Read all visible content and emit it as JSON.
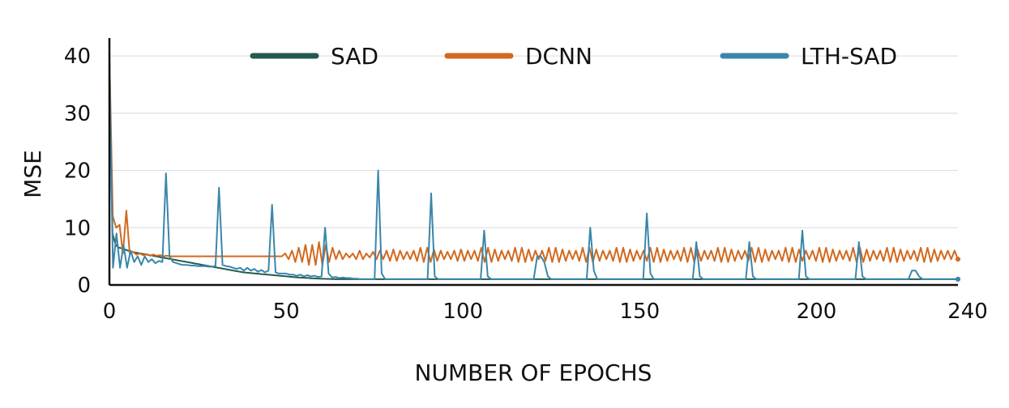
{
  "chart_data": {
    "type": "line",
    "title": "",
    "xlabel": "NUMBER OF EPOCHS",
    "ylabel": "MSE",
    "xlim": [
      0,
      240
    ],
    "ylim": [
      0,
      42
    ],
    "xticks": [
      0,
      50,
      100,
      150,
      200,
      240
    ],
    "yticks": [
      0,
      10,
      20,
      30,
      40
    ],
    "grid": "horizontal",
    "legend": "top",
    "series": [
      {
        "name": "SAD",
        "color": "#245a4f",
        "values": [
          40,
          9,
          7,
          6.5,
          6.4,
          6.2,
          6,
          5.8,
          5.7,
          5.6,
          5.5,
          5.4,
          5.3,
          5.2,
          5.1,
          5,
          4.9,
          4.8,
          4.7,
          4.6,
          4.5,
          4.4,
          4.3,
          4.2,
          4.1,
          4,
          3.9,
          3.8,
          3.7,
          3.6,
          3.5,
          3.4,
          3.3,
          3.2,
          3.1,
          3,
          2.9,
          2.8,
          2.7,
          2.6,
          2.5,
          2.4,
          2.3,
          2.2,
          2.15,
          2.1,
          2.05,
          2,
          1.95,
          1.9,
          1.85,
          1.8,
          1.75,
          1.7,
          1.65,
          1.6,
          1.55,
          1.5,
          1.45,
          1.4,
          1.35,
          1.3,
          1.27,
          1.24,
          1.21,
          1.18,
          1.15,
          1.12,
          1.1,
          1.08,
          1.06,
          1.04,
          1.02,
          1,
          1,
          1,
          1,
          1,
          1,
          1,
          1,
          1,
          1,
          1,
          1,
          1,
          1,
          1,
          1,
          1,
          1,
          1,
          1,
          1,
          1,
          1,
          1,
          1,
          1,
          1,
          1,
          1,
          1,
          1,
          1,
          1,
          1,
          1,
          1,
          1,
          1,
          1,
          1,
          1,
          1,
          1,
          1,
          1,
          1,
          1,
          1,
          1,
          1,
          1,
          1,
          1,
          1,
          1,
          1,
          1,
          1,
          1,
          1,
          1,
          1,
          1,
          1,
          1,
          1,
          1,
          1,
          1,
          1,
          1,
          1,
          1,
          1,
          1,
          1,
          1,
          1,
          1,
          1,
          1,
          1,
          1,
          1,
          1,
          1,
          1,
          1,
          1,
          1,
          1,
          1,
          1,
          1,
          1,
          1,
          1,
          1,
          1,
          1,
          1,
          1,
          1,
          1,
          1,
          1,
          1,
          1,
          1,
          1,
          1,
          1,
          1,
          1,
          1,
          1,
          1,
          1,
          1,
          1,
          1,
          1,
          1,
          1,
          1,
          1,
          1,
          1,
          1,
          1,
          1,
          1,
          1,
          1,
          1,
          1,
          1,
          1,
          1,
          1,
          1,
          1,
          1,
          1,
          1,
          1,
          1,
          1,
          1,
          1,
          1,
          1,
          1,
          1,
          1,
          1,
          1,
          1,
          1,
          1,
          1,
          1,
          1,
          1,
          1,
          1,
          1,
          1,
          1,
          1,
          1,
          1,
          1,
          1,
          1,
          1,
          1,
          1,
          1,
          1,
          1,
          1,
          1,
          1,
          1,
          1,
          1,
          1,
          1,
          1,
          1,
          1,
          1,
          1,
          1,
          1,
          1,
          1,
          1,
          1,
          1
        ]
      },
      {
        "name": "DCNN",
        "color": "#d2691e",
        "values": [
          40,
          12,
          10,
          10.5,
          5.5,
          13,
          5.5,
          5.8,
          5.3,
          5.5,
          5.2,
          5.4,
          5.1,
          5.3,
          5.1,
          5.2,
          5,
          5.1,
          5,
          5,
          5,
          5,
          5,
          5,
          5,
          5,
          5,
          5,
          5,
          5,
          5,
          5,
          5,
          5,
          5,
          5,
          5,
          5,
          5,
          5,
          5,
          5,
          5,
          5,
          5,
          5,
          5,
          5,
          5,
          5,
          5,
          5,
          5.5,
          4.5,
          6,
          4,
          6.5,
          4,
          7,
          3.5,
          7,
          3.5,
          7.5,
          3.5,
          7,
          4,
          6.5,
          4.5,
          6,
          4.5,
          5.5,
          4.8,
          5.5,
          4.5,
          6,
          4.5,
          5.5,
          4.8,
          5.8,
          4.5,
          6,
          4.5,
          6,
          4.2,
          6.2,
          4.2,
          6,
          4.5,
          5.8,
          4.5,
          6,
          4.2,
          6.5,
          4,
          6.5,
          4,
          6.2,
          4.2,
          6,
          4.5,
          5.8,
          4.5,
          6,
          4.2,
          6.2,
          4.2,
          6,
          4.5,
          6,
          4.2,
          6.5,
          4,
          6.5,
          4,
          6.2,
          4.2,
          6,
          4.5,
          6,
          4.2,
          6.5,
          4,
          6.5,
          4,
          6.2,
          4.2,
          6,
          4.5,
          6,
          4.2,
          6.5,
          4,
          6.5,
          4,
          6.2,
          4.2,
          6,
          4.5,
          6,
          4.2,
          6.5,
          4,
          6.5,
          4,
          6.2,
          4.2,
          6,
          4.5,
          6,
          4.2,
          6.5,
          4,
          6.5,
          4,
          6.2,
          4.2,
          6,
          4.5,
          6,
          4.2,
          6.5,
          4,
          6.5,
          4,
          6.2,
          4.2,
          6,
          4.5,
          6,
          4.2,
          6.5,
          4,
          6.5,
          4,
          6.2,
          4.2,
          6,
          4.5,
          6,
          4.2,
          6.5,
          4,
          6.5,
          4,
          6.2,
          4.2,
          6,
          4.5,
          6,
          4.2,
          6.5,
          4,
          6.5,
          4,
          6.2,
          4.2,
          6,
          4.5,
          6,
          4.2,
          6.5,
          4,
          6.5,
          4,
          6.2,
          4.2,
          6,
          4.5,
          6,
          4.2,
          6.5,
          4,
          6.5,
          4,
          6.2,
          4.2,
          6,
          4.5,
          6,
          4.2,
          6.5,
          4,
          6.5,
          4,
          6.2,
          4.2,
          6,
          4.5,
          6,
          4.2,
          6.5,
          4,
          6.5,
          4,
          6.2,
          4.2,
          6,
          4.5,
          6,
          4.2,
          6.5,
          4,
          6.5,
          4,
          6.2,
          4.2,
          6,
          4.5,
          6,
          4.5,
          6,
          4.5
        ]
      },
      {
        "name": "LTH-SAD",
        "color": "#3a86ab",
        "values": [
          38,
          3,
          9,
          3,
          7,
          3,
          6,
          4,
          5,
          3.5,
          5,
          4,
          4.5,
          3.8,
          4.2,
          4,
          19.5,
          5,
          4,
          3.8,
          3.6,
          3.5,
          3.5,
          3.4,
          3.4,
          3.3,
          3.3,
          3.3,
          3.2,
          3.2,
          3.3,
          17,
          3.5,
          3.3,
          3.2,
          3,
          2.8,
          3,
          2.5,
          3,
          2.5,
          2.8,
          2.3,
          2.6,
          2.2,
          2.5,
          14,
          2.2,
          2,
          2,
          2,
          1.8,
          1.8,
          1.6,
          1.8,
          1.5,
          1.7,
          1.5,
          1.6,
          1.4,
          1.5,
          10,
          2,
          1.3,
          1.4,
          1.2,
          1.3,
          1.2,
          1.2,
          1.1,
          1.1,
          1,
          1,
          1,
          1,
          1,
          20,
          2,
          1,
          1,
          1,
          1,
          1,
          1,
          1,
          1,
          1,
          1,
          1,
          1,
          1,
          16,
          1.5,
          1,
          1,
          1,
          1,
          1,
          1,
          1,
          1,
          1,
          1,
          1,
          1,
          1,
          9.5,
          1.5,
          1,
          1,
          1,
          1,
          1,
          1,
          1,
          1,
          1,
          1,
          1,
          1,
          1,
          5,
          5,
          4,
          1.5,
          1,
          1,
          1,
          1,
          1,
          1,
          1,
          1,
          1,
          1,
          1,
          10,
          2.5,
          1,
          1,
          1,
          1,
          1,
          1,
          1,
          1,
          1,
          1,
          1,
          1,
          1,
          1,
          12.5,
          2,
          1,
          1,
          1,
          1,
          1,
          1,
          1,
          1,
          1,
          1,
          1,
          1,
          7.5,
          1.5,
          1,
          1,
          1,
          1,
          1,
          1,
          1,
          1,
          1,
          1,
          1,
          1,
          1,
          7.5,
          1.5,
          1,
          1,
          1,
          1,
          1,
          1,
          1,
          1,
          1,
          1,
          1,
          1,
          1,
          9.5,
          1.5,
          1,
          1,
          1,
          1,
          1,
          1,
          1,
          1,
          1,
          1,
          1,
          1,
          1,
          1,
          7.5,
          1.5,
          1,
          1,
          1,
          1,
          1,
          1,
          1,
          1,
          1,
          1,
          1,
          1,
          1,
          2.5,
          2.5,
          1.5,
          1,
          1,
          1,
          1,
          1,
          1,
          1,
          1,
          1,
          1,
          1
        ]
      }
    ]
  }
}
